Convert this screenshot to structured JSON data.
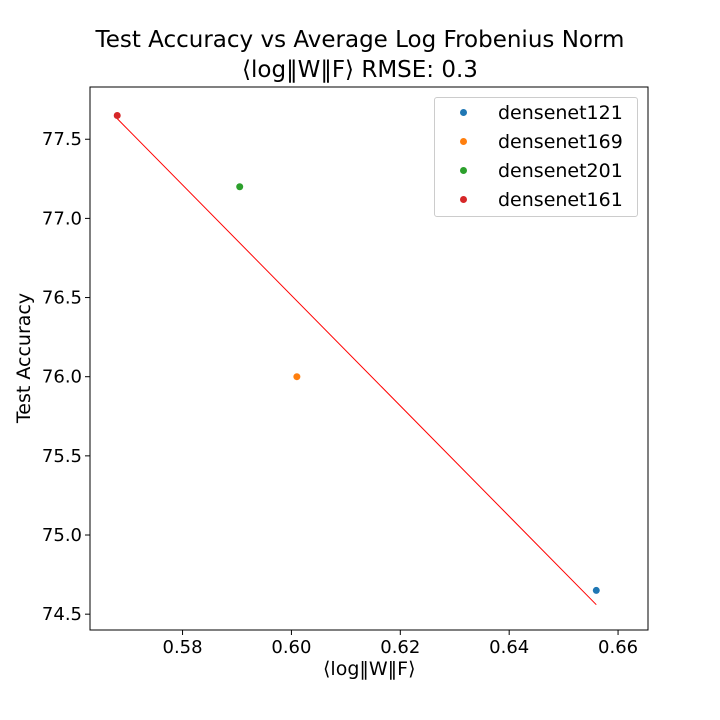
{
  "title_line1": "Test Accuracy vs Average Log Frobenius Norm",
  "title_line2": "⟨log‖W‖F⟩ RMSE: 0.3",
  "chart_data": {
    "type": "scatter",
    "xlabel": "⟨log‖W‖F⟩",
    "ylabel": "Test Accuracy",
    "xlim": [
      0.563,
      0.6655
    ],
    "ylim": [
      74.4,
      77.83
    ],
    "xticks": [
      0.58,
      0.6,
      0.62,
      0.64,
      0.66
    ],
    "xtick_labels": [
      "0.58",
      "0.60",
      "0.62",
      "0.64",
      "0.66"
    ],
    "yticks": [
      74.5,
      75.0,
      75.5,
      76.0,
      76.5,
      77.0,
      77.5
    ],
    "ytick_labels": [
      "74.5",
      "75.0",
      "75.5",
      "76.0",
      "76.5",
      "77.0",
      "77.5"
    ],
    "series": [
      {
        "name": "densenet121",
        "color": "#1f77b4",
        "x": [
          0.656
        ],
        "y": [
          74.65
        ]
      },
      {
        "name": "densenet169",
        "color": "#ff7f0e",
        "x": [
          0.601
        ],
        "y": [
          76.0
        ]
      },
      {
        "name": "densenet201",
        "color": "#2ca02c",
        "x": [
          0.5905
        ],
        "y": [
          77.2
        ]
      },
      {
        "name": "densenet161",
        "color": "#d62728",
        "x": [
          0.568
        ],
        "y": [
          77.65
        ]
      }
    ],
    "fit_line": {
      "color": "#ff0000",
      "x": [
        0.568,
        0.656
      ],
      "y": [
        77.63,
        74.56
      ]
    },
    "grid": false,
    "legend_position": "top-right"
  }
}
